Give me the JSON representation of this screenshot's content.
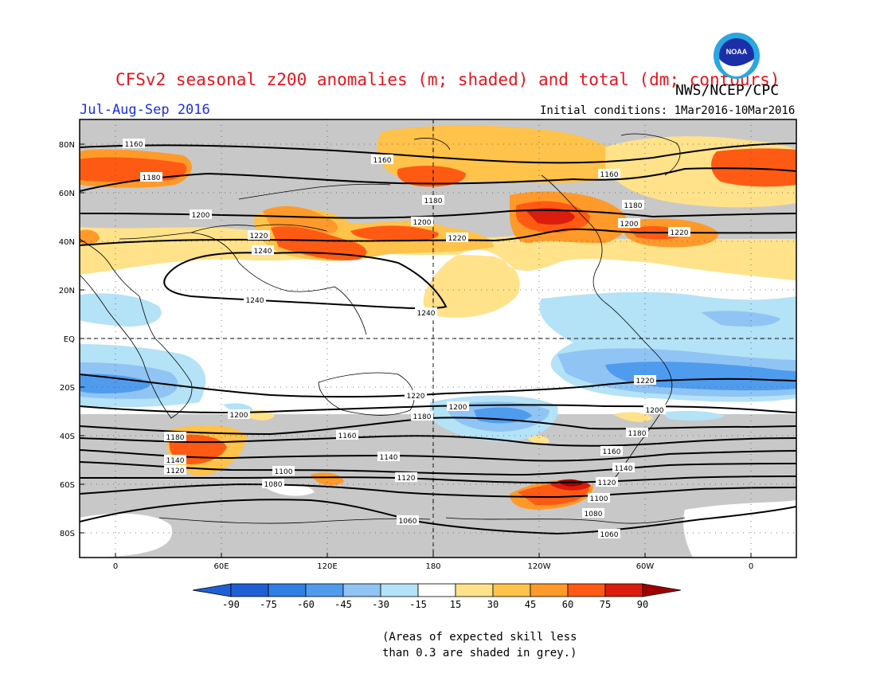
{
  "header": {
    "title": "CFSv2 seasonal z200 anomalies (m; shaded) and total (dm; contours)",
    "org": "NWS/NCEP/CPC",
    "season": "Jul-Aug-Sep 2016",
    "initial_conditions": "Initial conditions: 1Mar2016-10Mar2016",
    "logo_text": "NOAA"
  },
  "map": {
    "lat_labels": [
      "80N",
      "60N",
      "40N",
      "20N",
      "EQ",
      "20S",
      "40S",
      "60S",
      "80S"
    ],
    "lon_labels": [
      "0",
      "60E",
      "120E",
      "180",
      "120W",
      "60W",
      "0"
    ],
    "contour_labels": [
      "1160",
      "1160",
      "1160",
      "1180",
      "1180",
      "1180",
      "1200",
      "1200",
      "1200",
      "1220",
      "1220",
      "1220",
      "1240",
      "1240",
      "1240",
      "1220",
      "1220",
      "1200",
      "1200",
      "1200",
      "1180",
      "1180",
      "1180",
      "1160",
      "1160",
      "1140",
      "1140",
      "1140",
      "1120",
      "1120",
      "1120",
      "1100",
      "1100",
      "1080",
      "1080",
      "1060",
      "1060"
    ],
    "colors": {
      "neg90": "#1f5fd6",
      "neg75": "#2f7fe6",
      "neg60": "#4f9cee",
      "neg45": "#8fc4f4",
      "neg30": "#b4e2f6",
      "neg15": "#ffffff",
      "pos15": "#ffe28a",
      "pos30": "#ffc24a",
      "pos45": "#ff9a2a",
      "pos60": "#ff5a14",
      "pos75": "#dc1c0c",
      "pos90": "#a00000",
      "grey": "#c8c8c8"
    }
  },
  "colorbar": {
    "ticks": [
      "-90",
      "-75",
      "-60",
      "-45",
      "-30",
      "-15",
      "15",
      "30",
      "45",
      "60",
      "75",
      "90"
    ]
  },
  "footnote": {
    "line1": "(Areas of expected skill less",
    "line2": "than 0.3 are shaded in grey.)"
  }
}
